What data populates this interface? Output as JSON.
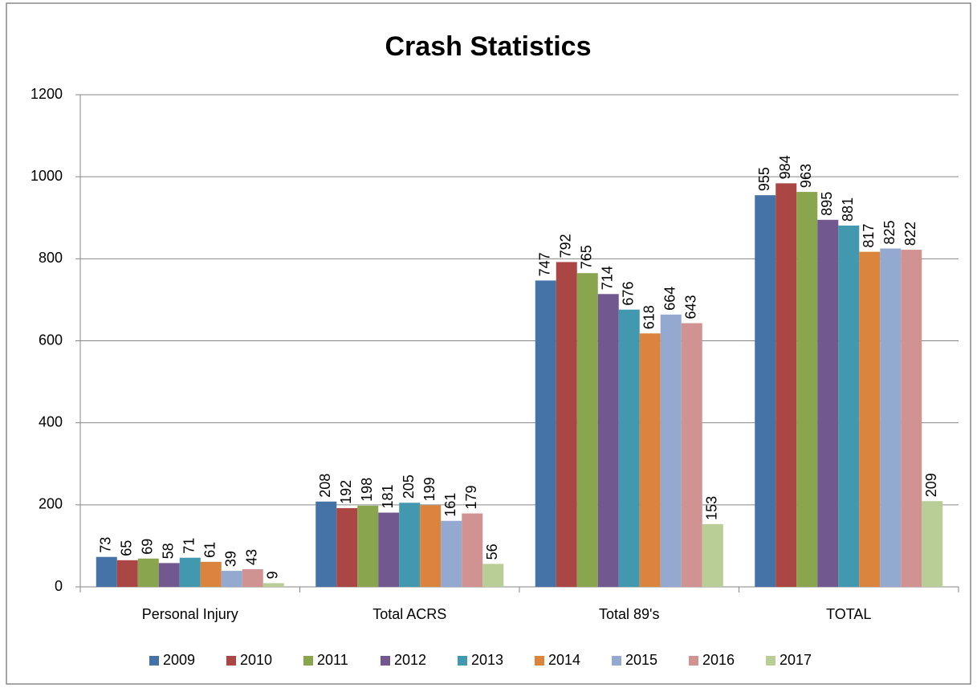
{
  "chart_data": {
    "type": "bar",
    "title": "Crash Statistics",
    "categories": [
      "Personal Injury",
      "Total ACRS",
      "Total 89's",
      "TOTAL"
    ],
    "series": [
      {
        "name": "2009",
        "color": "#4572a7",
        "values": [
          73,
          208,
          747,
          955
        ]
      },
      {
        "name": "2010",
        "color": "#aa4643",
        "values": [
          65,
          192,
          792,
          984
        ]
      },
      {
        "name": "2011",
        "color": "#89a54e",
        "values": [
          69,
          198,
          765,
          963
        ]
      },
      {
        "name": "2012",
        "color": "#71588f",
        "values": [
          58,
          181,
          714,
          895
        ]
      },
      {
        "name": "2013",
        "color": "#4198af",
        "values": [
          71,
          205,
          676,
          881
        ]
      },
      {
        "name": "2014",
        "color": "#db843d",
        "values": [
          61,
          199,
          618,
          817
        ]
      },
      {
        "name": "2015",
        "color": "#93a9cf",
        "values": [
          39,
          161,
          664,
          825
        ]
      },
      {
        "name": "2016",
        "color": "#d19392",
        "values": [
          43,
          179,
          643,
          822
        ]
      },
      {
        "name": "2017",
        "color": "#b9cd96",
        "values": [
          9,
          56,
          153,
          209
        ]
      }
    ],
    "ylim": [
      0,
      1200
    ],
    "yticks": [
      0,
      200,
      400,
      600,
      800,
      1000,
      1200
    ],
    "grid": true,
    "legend": "bottom"
  }
}
